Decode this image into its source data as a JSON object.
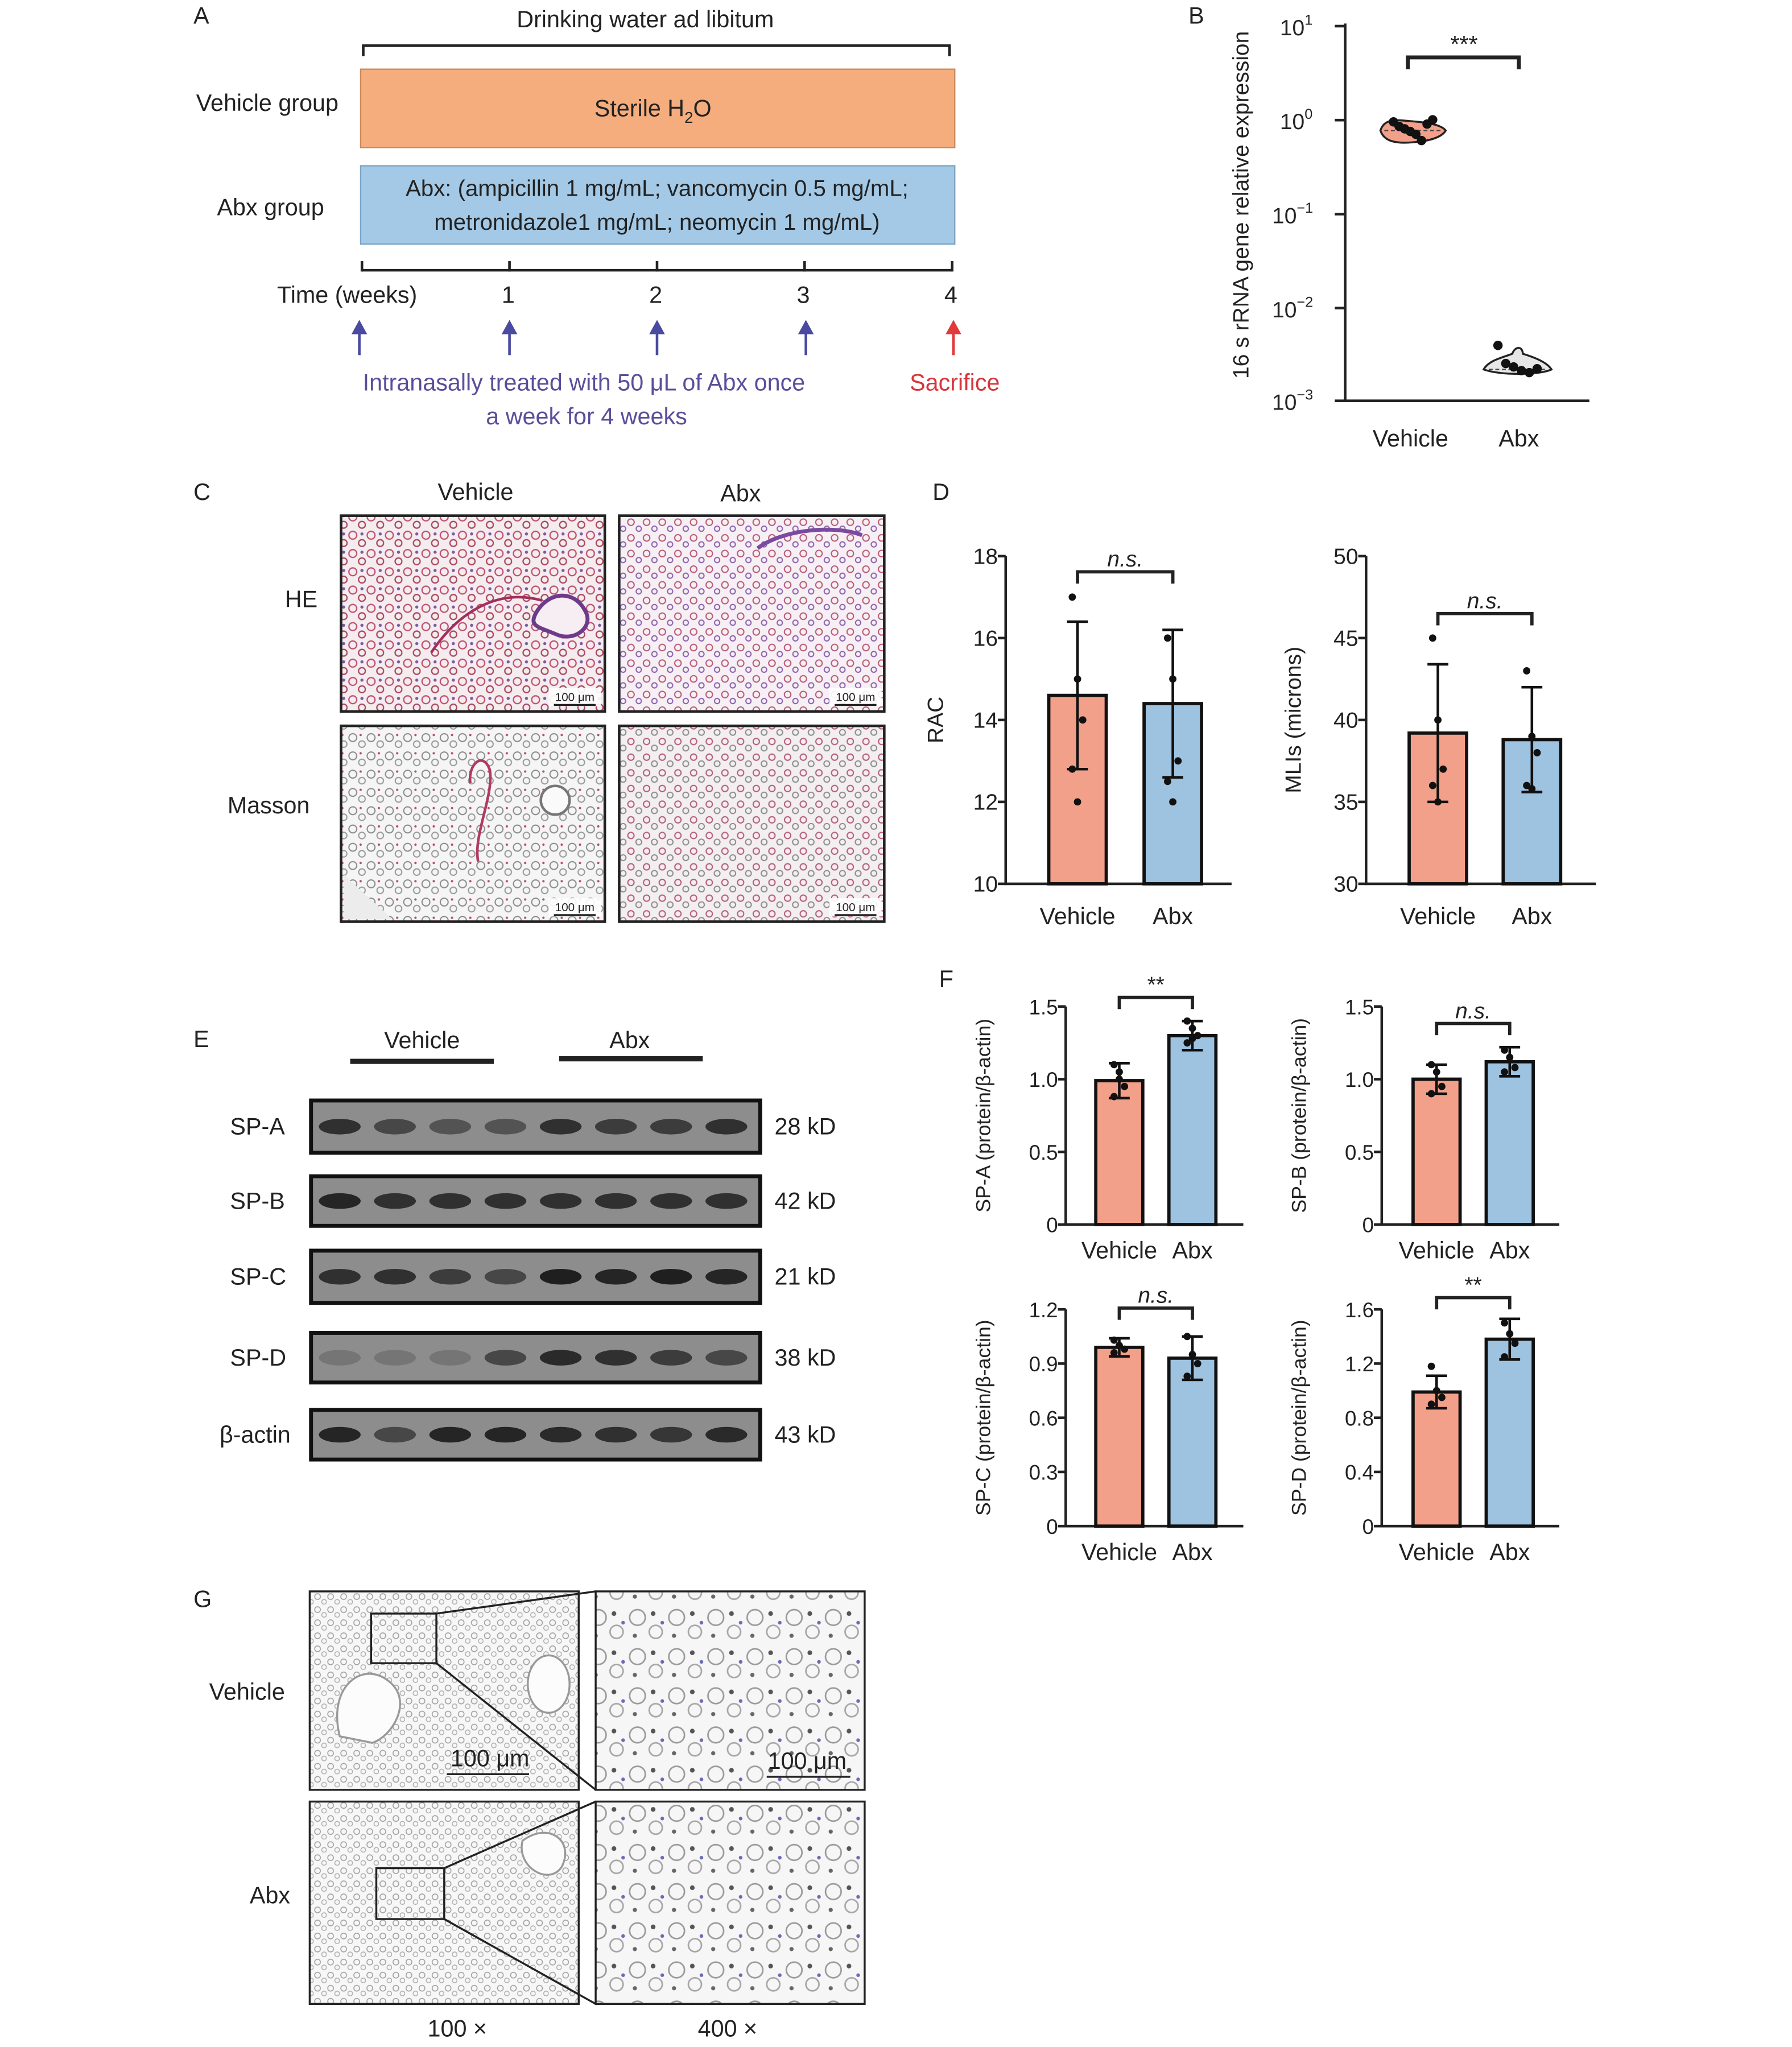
{
  "colors": {
    "vehicle": "#f3a08a",
    "abx": "#9ec3e1",
    "vehicle_timeline": "#f5ad7e",
    "abx_timeline": "#a3c9e6",
    "text": "#222222",
    "arrow_blue": "#4a4aa0",
    "arrow_red": "#e03a3a",
    "purple_text": "#5a4e9a",
    "red_text": "#d8343a"
  },
  "panel_A": {
    "letter": "A",
    "title": "Drinking water ad libitum",
    "vehicle_label": "Vehicle group",
    "vehicle_bar_text": "Sterile H",
    "vehicle_bar_sub": "2",
    "vehicle_bar_tail": "O",
    "abx_label": "Abx group",
    "abx_bar_line1": "Abx: (ampicillin 1 mg/mL; vancomycin 0.5 mg/mL;",
    "abx_bar_line2": "metronidazole1 mg/mL; neomycin 1 mg/mL)",
    "time_label": "Time (weeks)",
    "ticks": [
      "1",
      "2",
      "3",
      "4"
    ],
    "treat_line1": "Intranasally treated with 50 μL of Abx once",
    "treat_line2": "a week for 4 weeks",
    "sacrifice": "Sacrifice",
    "arrow_icons": [
      "up-arrow-icon",
      "up-arrow-icon",
      "up-arrow-icon",
      "up-arrow-icon",
      "red-up-arrow-icon"
    ]
  },
  "panel_B": {
    "letter": "B",
    "significance": "***",
    "chart_data": {
      "type": "scatter",
      "ylabel": "16 s rRNA gene relative expression",
      "yscale": "log",
      "ylim": [
        0.001,
        10
      ],
      "tick_labels": [
        {
          "base": "10",
          "exp": "1"
        },
        {
          "base": "10",
          "exp": "0"
        },
        {
          "base": "10",
          "exp": "−1"
        },
        {
          "base": "10",
          "exp": "−2"
        },
        {
          "base": "10",
          "exp": "−3"
        }
      ],
      "categories": [
        "Vehicle",
        "Abx"
      ],
      "groups": [
        {
          "name": "Vehicle",
          "points": [
            0.95,
            0.85,
            0.8,
            0.75,
            0.7,
            0.6,
            0.9,
            1.0
          ]
        },
        {
          "name": "Abx",
          "points": [
            0.0039,
            0.0025,
            0.0023,
            0.0021,
            0.002,
            0.0022
          ]
        }
      ]
    }
  },
  "panel_C": {
    "letter": "C",
    "col_labels": [
      "Vehicle",
      "Abx"
    ],
    "row_labels": [
      "HE",
      "Masson"
    ],
    "scale_bar": "100 μm"
  },
  "panel_D": {
    "letter": "D",
    "chart_data": [
      {
        "type": "bar",
        "categories": [
          "Vehicle",
          "Abx"
        ],
        "values": [
          14.6,
          14.4
        ],
        "errors": [
          1.8,
          1.8
        ],
        "points": [
          [
            17,
            15,
            14,
            12.8,
            12
          ],
          [
            16,
            15,
            13,
            12.5,
            12
          ]
        ],
        "ylabel": "RAC",
        "ylim": [
          10,
          18
        ],
        "yticks": [
          "10",
          "12",
          "14",
          "16",
          "18"
        ],
        "significance": "n.s."
      },
      {
        "type": "bar",
        "categories": [
          "Vehicle",
          "Abx"
        ],
        "values": [
          39.2,
          38.8
        ],
        "errors": [
          4.2,
          3.2
        ],
        "points": [
          [
            45,
            40,
            37,
            36,
            35
          ],
          [
            43,
            39,
            38,
            36,
            35.8
          ]
        ],
        "ylabel": "MLIs (microns)",
        "ylim": [
          30,
          50
        ],
        "yticks": [
          "30",
          "35",
          "40",
          "45",
          "50"
        ],
        "significance": "n.s."
      }
    ]
  },
  "panel_E": {
    "letter": "E",
    "groups": [
      "Vehicle",
      "Abx"
    ],
    "rows": [
      {
        "label": "SP-A",
        "kd": "28 kD"
      },
      {
        "label": "SP-B",
        "kd": "42 kD"
      },
      {
        "label": "SP-C",
        "kd": "21 kD"
      },
      {
        "label": "SP-D",
        "kd": "38 kD"
      },
      {
        "label": "β-actin",
        "kd": "43 kD"
      }
    ]
  },
  "panel_F": {
    "letter": "F",
    "chart_data": [
      {
        "type": "bar",
        "categories": [
          "Vehicle",
          "Abx"
        ],
        "values": [
          0.99,
          1.3
        ],
        "errors": [
          0.12,
          0.1
        ],
        "points": [
          [
            1.1,
            1.0,
            0.95,
            0.88,
            1.05
          ],
          [
            1.4,
            1.35,
            1.3,
            1.25,
            1.28
          ]
        ],
        "ylabel": "SP-A (protein/β-actin)",
        "ylim": [
          0,
          1.5
        ],
        "yticks": [
          "0",
          "0.5",
          "1.0",
          "1.5"
        ],
        "significance": "**"
      },
      {
        "type": "bar",
        "categories": [
          "Vehicle",
          "Abx"
        ],
        "values": [
          1.0,
          1.12
        ],
        "errors": [
          0.1,
          0.1
        ],
        "points": [
          [
            1.1,
            1.05,
            0.95,
            0.9
          ],
          [
            1.2,
            1.15,
            1.08,
            1.05
          ]
        ],
        "ylabel": "SP-B (protein/β-actin)",
        "ylim": [
          0,
          1.5
        ],
        "yticks": [
          "0",
          "0.5",
          "1.0",
          "1.5"
        ],
        "significance": "n.s."
      },
      {
        "type": "bar",
        "categories": [
          "Vehicle",
          "Abx"
        ],
        "values": [
          0.99,
          0.93
        ],
        "errors": [
          0.05,
          0.12
        ],
        "points": [
          [
            1.03,
            1.0,
            0.98,
            0.96
          ],
          [
            1.05,
            0.95,
            0.9,
            0.83
          ]
        ],
        "ylabel": "SP-C (protein/β-actin)",
        "ylim": [
          0,
          1.2
        ],
        "yticks": [
          "0",
          "0.3",
          "0.6",
          "0.9",
          "1.2"
        ],
        "significance": "n.s."
      },
      {
        "type": "bar",
        "categories": [
          "Vehicle",
          "Abx"
        ],
        "values": [
          0.99,
          1.38
        ],
        "errors": [
          0.12,
          0.15
        ],
        "points": [
          [
            1.18,
            1.0,
            0.95,
            0.9
          ],
          [
            1.5,
            1.42,
            1.35,
            1.25
          ]
        ],
        "ylabel": "SP-D (protein/β-actin)",
        "ylim": [
          0,
          1.6
        ],
        "yticks": [
          "0",
          "0.4",
          "0.8",
          "1.2",
          "1.6"
        ],
        "significance": "**"
      }
    ]
  },
  "panel_G": {
    "letter": "G",
    "row_labels": [
      "Vehicle",
      "Abx"
    ],
    "scale_bar": "100 μm",
    "mag_labels": [
      "100 ×",
      "400 ×"
    ]
  }
}
